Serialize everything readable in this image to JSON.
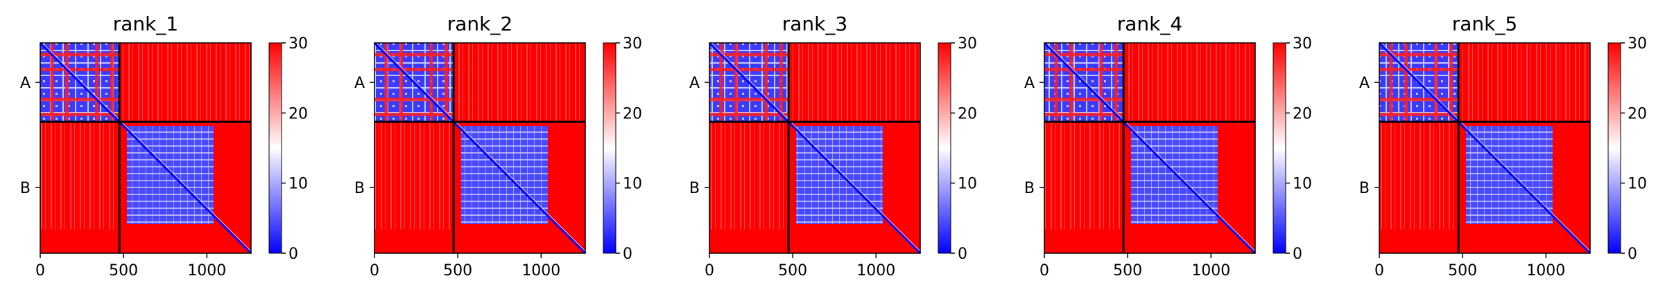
{
  "chart_data": {
    "type": "heatmap",
    "description_scale": "predicted aligned error",
    "xticks": [
      0,
      500,
      1000
    ],
    "xlim": [
      0,
      1265
    ],
    "chain_boundary": 475,
    "chains": [
      {
        "label": "A",
        "start": 0,
        "end": 475
      },
      {
        "label": "B",
        "start": 475,
        "end": 1265
      }
    ],
    "colorbar": {
      "min": 0,
      "max": 30,
      "ticks": [
        0,
        10,
        20,
        30
      ],
      "colormap": "bwr"
    },
    "panels": [
      {
        "title": "rank_1"
      },
      {
        "title": "rank_2"
      },
      {
        "title": "rank_3"
      },
      {
        "title": "rank_4"
      },
      {
        "title": "rank_5"
      }
    ],
    "colors": {
      "low": "#0000ff",
      "mid": "#ffffff",
      "high": "#ff0000",
      "line": "#000000"
    }
  }
}
